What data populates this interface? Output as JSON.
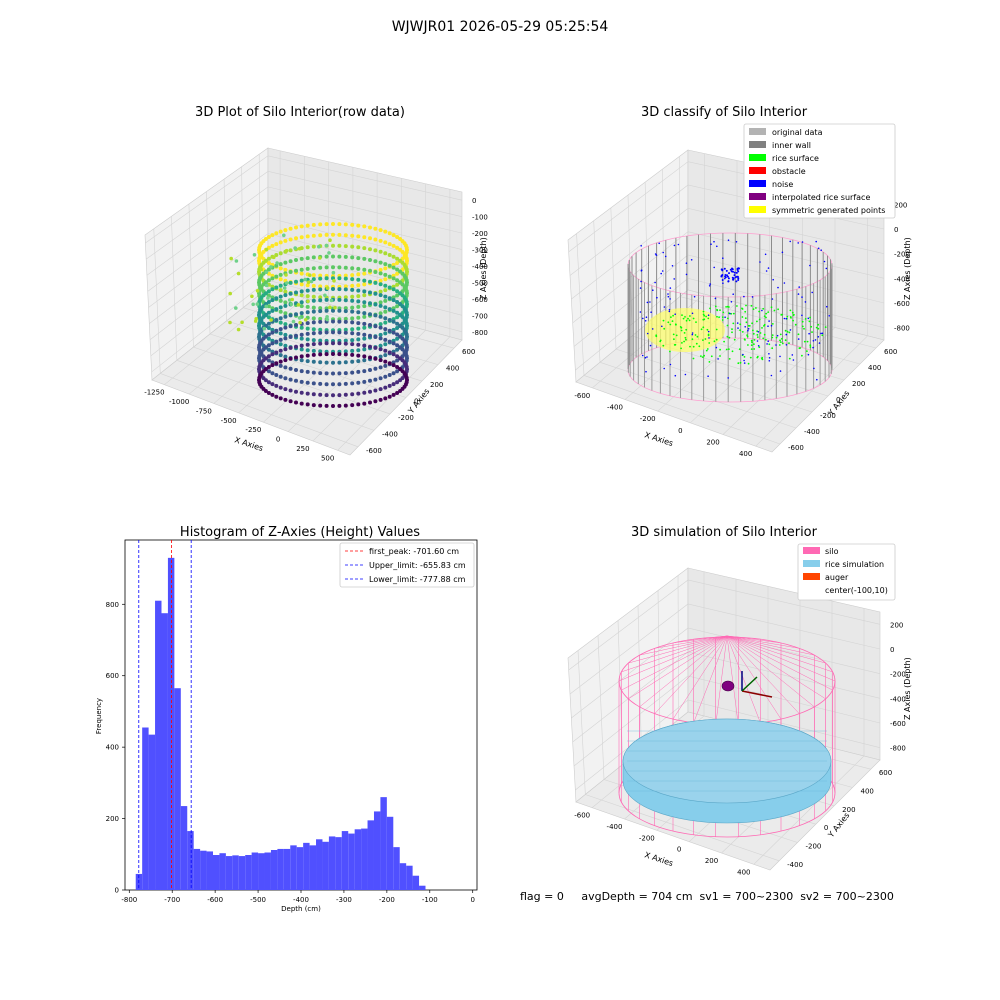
{
  "figure": {
    "suptitle": "WJWJR01 2026-05-29 05:25:54",
    "status_line": "flag = 0     avgDepth = 704 cm  sv1 = 700~2300  sv2 = 700~2300"
  },
  "colors": {
    "grey_pane": "#f2f2f2",
    "grid": "#d9d9d9",
    "silo_pink": "#ff69b4",
    "rice_blue": "#87ceeb",
    "noise_blue": "#0000ff",
    "rice_green": "#00ff00",
    "inner_wall": "#808080",
    "symmetric_yellow": "#ffff00",
    "hist_blue": "#0000ff"
  },
  "panels": {
    "raw": {
      "title": "3D Plot of Silo Interior(row data)",
      "xlabel": "X Axies",
      "ylabel": "Y Axies",
      "zlabel": "Z Axies (Depth)",
      "xticks": [
        "-1250",
        "-1000",
        "-750",
        "-500",
        "-250",
        "0",
        "250",
        "500"
      ],
      "yticks": [
        "-600",
        "-400",
        "-200",
        "0",
        "200",
        "400",
        "600"
      ],
      "zticks": [
        "0",
        "-100",
        "-200",
        "-300",
        "-400",
        "-500",
        "-600",
        "-700",
        "-800"
      ]
    },
    "classify": {
      "title": "3D classify of Silo Interior",
      "xlabel": "X Axies",
      "ylabel": "Y Axies",
      "zlabel": "Z Axies (Depth)",
      "xticks": [
        "-600",
        "-400",
        "-200",
        "0",
        "200",
        "400"
      ],
      "yticks": [
        "-600",
        "-400",
        "-200",
        "0",
        "200",
        "400",
        "600"
      ],
      "zticks": [
        "200",
        "0",
        "-200",
        "-400",
        "-600",
        "-800"
      ],
      "legend": [
        {
          "label": "original data",
          "color": "#b3b3b3"
        },
        {
          "label": "inner wall",
          "color": "#808080"
        },
        {
          "label": "rice surface",
          "color": "#00ff00"
        },
        {
          "label": "obstacle",
          "color": "#ff0000"
        },
        {
          "label": "noise",
          "color": "#0000ff"
        },
        {
          "label": "interpolated rice surface",
          "color": "#800080"
        },
        {
          "label": "symmetric generated points",
          "color": "#ffff00"
        }
      ]
    },
    "simulation": {
      "title": "3D simulation of Silo Interior",
      "xlabel": "X Axies",
      "ylabel": "Y Axies",
      "zlabel": "Z Axies (Depth)",
      "xticks": [
        "-600",
        "-400",
        "-200",
        "0",
        "200",
        "400"
      ],
      "yticks": [
        "-400",
        "-200",
        "0",
        "200",
        "400",
        "600"
      ],
      "zticks": [
        "200",
        "0",
        "-200",
        "-400",
        "-600",
        "-800"
      ],
      "legend": [
        {
          "label": "silo",
          "color": "#ff69b4"
        },
        {
          "label": "rice simulation",
          "color": "#87ceeb"
        },
        {
          "label": "auger",
          "color": "#ff4500"
        },
        {
          "label": "center(-100,10)",
          "color": ""
        }
      ]
    }
  },
  "chart_data": {
    "type": "bar",
    "title": "Histogram of Z-Axies (Height) Values",
    "xlabel": "Depth (cm)",
    "ylabel": "Frequency",
    "xlim": [
      -810,
      10
    ],
    "ylim": [
      0,
      980
    ],
    "xticks": [
      -800,
      -700,
      -600,
      -500,
      -400,
      -300,
      -200,
      -100,
      0
    ],
    "yticks": [
      0,
      200,
      400,
      600,
      800
    ],
    "bin_start": -785,
    "bin_width": 15,
    "values": [
      45,
      455,
      435,
      810,
      775,
      930,
      565,
      235,
      165,
      115,
      110,
      108,
      98,
      103,
      95,
      97,
      95,
      98,
      105,
      103,
      105,
      112,
      115,
      115,
      125,
      120,
      132,
      125,
      142,
      135,
      150,
      148,
      165,
      158,
      170,
      172,
      195,
      220,
      260,
      205,
      120,
      75,
      68,
      40,
      12
    ],
    "vlines": [
      {
        "label": "first_peak: -701.60 cm",
        "x": -701.6,
        "color": "#ff0000",
        "style": "dash"
      },
      {
        "label": "Upper_limit: -655.83 cm",
        "x": -655.83,
        "color": "#0000ff",
        "style": "dash"
      },
      {
        "label": "Lower_limit: -777.88 cm",
        "x": -777.88,
        "color": "#0000ff",
        "style": "dash"
      }
    ],
    "legend_position": "top-right"
  }
}
